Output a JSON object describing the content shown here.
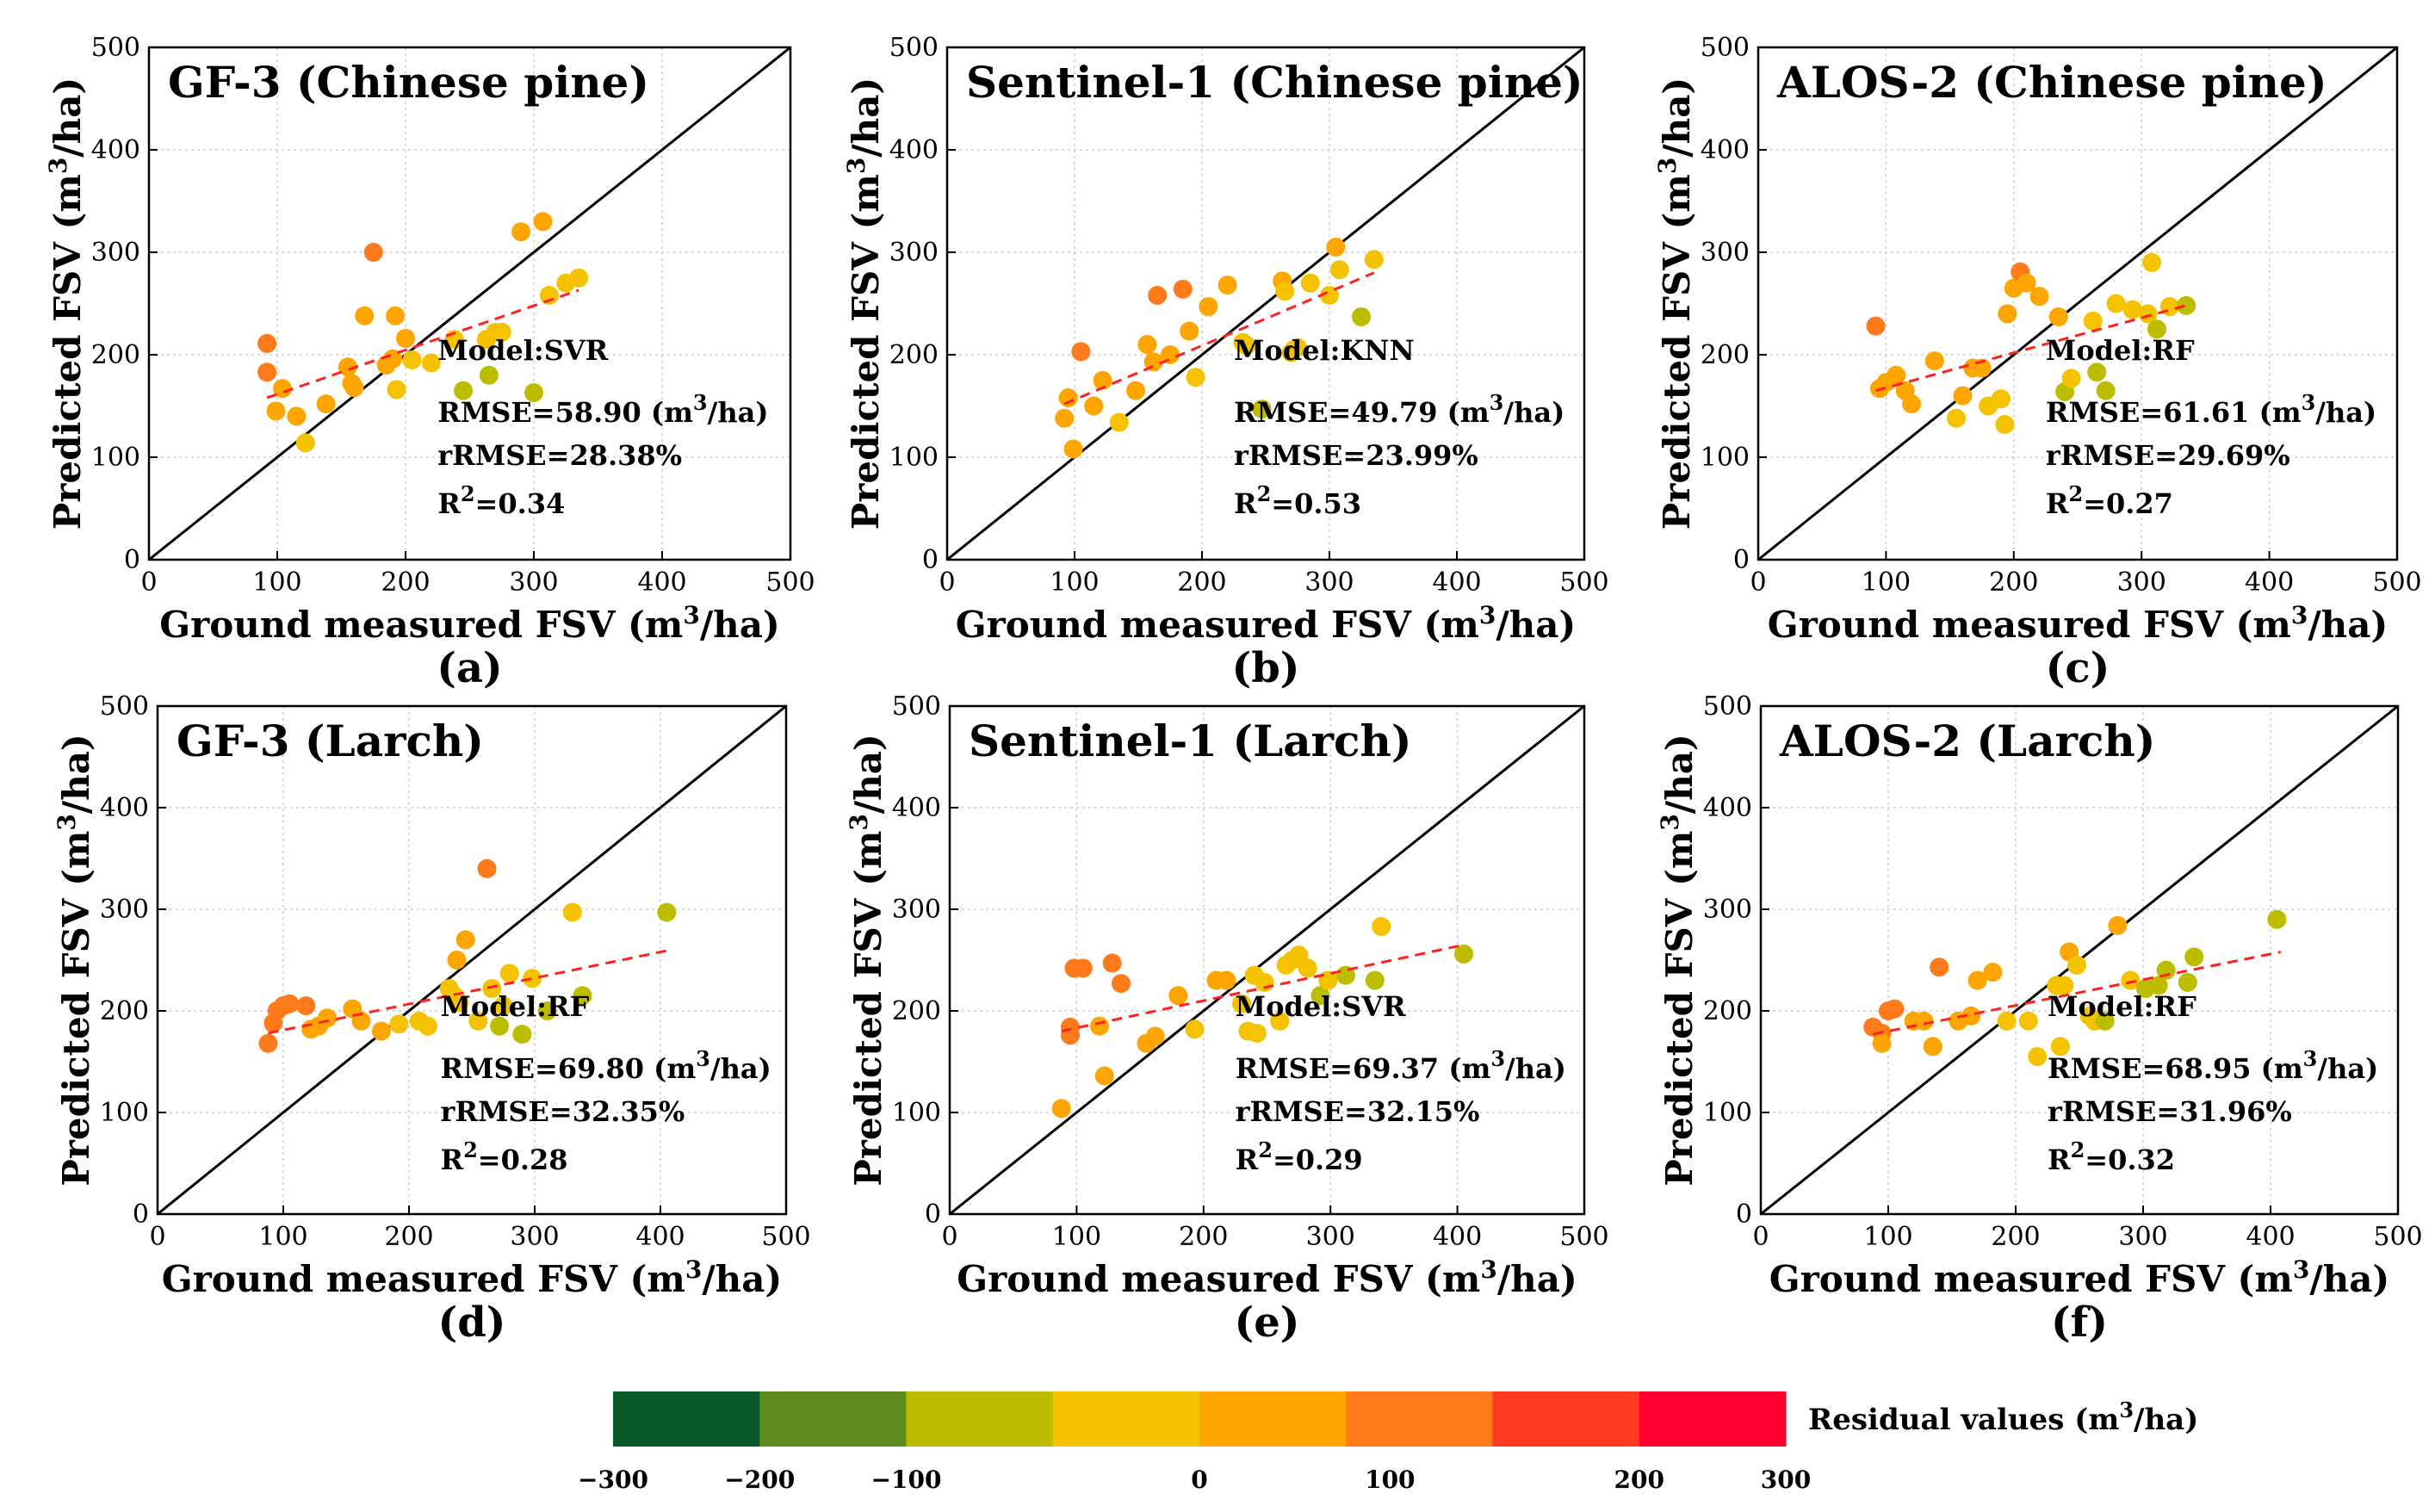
{
  "chart_data": [
    {
      "type": "scatter",
      "panel_label": "(a)",
      "title": "GF-3 (Chinese pine)",
      "xlabel": "Ground measured FSV (m³/ha)",
      "ylabel": "Predicted FSV (m³/ha)",
      "xlim": [
        0,
        500
      ],
      "ylim": [
        0,
        500
      ],
      "ticks": [
        "0",
        "100",
        "200",
        "300",
        "400",
        "500"
      ],
      "model": "Model:SVR",
      "rmse": "RMSE=58.90 (m³/ha)",
      "rrmse": "rRMSE=28.38%",
      "r2": "R²=0.34",
      "trend": [
        [
          92,
          158
        ],
        [
          335,
          263
        ]
      ],
      "points": [
        [
          92,
          211
        ],
        [
          92,
          183
        ],
        [
          99,
          145
        ],
        [
          104,
          167
        ],
        [
          115,
          140
        ],
        [
          122,
          114
        ],
        [
          138,
          152
        ],
        [
          155,
          188
        ],
        [
          158,
          172
        ],
        [
          160,
          168
        ],
        [
          168,
          238
        ],
        [
          175,
          300
        ],
        [
          185,
          190
        ],
        [
          190,
          196
        ],
        [
          192,
          238
        ],
        [
          193,
          166
        ],
        [
          200,
          216
        ],
        [
          205,
          195
        ],
        [
          220,
          192
        ],
        [
          238,
          215
        ],
        [
          245,
          165
        ],
        [
          263,
          215
        ],
        [
          265,
          180
        ],
        [
          270,
          222
        ],
        [
          275,
          222
        ],
        [
          290,
          320
        ],
        [
          300,
          163
        ],
        [
          307,
          330
        ],
        [
          312,
          258
        ],
        [
          325,
          270
        ],
        [
          335,
          275
        ]
      ]
    },
    {
      "type": "scatter",
      "panel_label": "(b)",
      "title": "Sentinel-1 (Chinese pine)",
      "xlabel": "Ground measured FSV (m³/ha)",
      "ylabel": "Predicted FSV (m³/ha)",
      "xlim": [
        0,
        500
      ],
      "ylim": [
        0,
        500
      ],
      "ticks": [
        "0",
        "100",
        "200",
        "300",
        "400",
        "500"
      ],
      "model": "Model:KNN",
      "rmse": "RMSE=49.79 (m³/ha)",
      "rrmse": "rRMSE=23.99%",
      "r2": "R²=0.53",
      "trend": [
        [
          92,
          152
        ],
        [
          335,
          280
        ]
      ],
      "points": [
        [
          92,
          138
        ],
        [
          95,
          158
        ],
        [
          99,
          108
        ],
        [
          105,
          203
        ],
        [
          115,
          150
        ],
        [
          122,
          175
        ],
        [
          135,
          134
        ],
        [
          148,
          165
        ],
        [
          157,
          210
        ],
        [
          162,
          193
        ],
        [
          165,
          258
        ],
        [
          175,
          200
        ],
        [
          185,
          264
        ],
        [
          190,
          223
        ],
        [
          195,
          178
        ],
        [
          205,
          247
        ],
        [
          220,
          268
        ],
        [
          232,
          212
        ],
        [
          235,
          209
        ],
        [
          247,
          147
        ],
        [
          263,
          272
        ],
        [
          265,
          262
        ],
        [
          270,
          202
        ],
        [
          272,
          205
        ],
        [
          275,
          207
        ],
        [
          285,
          270
        ],
        [
          300,
          258
        ],
        [
          305,
          305
        ],
        [
          308,
          283
        ],
        [
          325,
          237
        ],
        [
          335,
          293
        ]
      ]
    },
    {
      "type": "scatter",
      "panel_label": "(c)",
      "title": "ALOS-2 (Chinese pine)",
      "xlabel": "Ground measured FSV (m³/ha)",
      "ylabel": "Predicted FSV (m³/ha)",
      "xlim": [
        0,
        500
      ],
      "ylim": [
        0,
        500
      ],
      "ticks": [
        "0",
        "100",
        "200",
        "300",
        "400",
        "500"
      ],
      "model": "Model:RF",
      "rmse": "RMSE=61.61 (m³/ha)",
      "rrmse": "rRMSE=29.69%",
      "r2": "R²=0.27",
      "trend": [
        [
          92,
          165
        ],
        [
          335,
          248
        ]
      ],
      "points": [
        [
          92,
          228
        ],
        [
          95,
          167
        ],
        [
          100,
          173
        ],
        [
          108,
          180
        ],
        [
          115,
          165
        ],
        [
          120,
          152
        ],
        [
          138,
          194
        ],
        [
          155,
          138
        ],
        [
          160,
          160
        ],
        [
          168,
          187
        ],
        [
          175,
          187
        ],
        [
          180,
          150
        ],
        [
          190,
          157
        ],
        [
          193,
          132
        ],
        [
          195,
          240
        ],
        [
          200,
          265
        ],
        [
          205,
          281
        ],
        [
          210,
          270
        ],
        [
          220,
          257
        ],
        [
          235,
          237
        ],
        [
          240,
          164
        ],
        [
          245,
          177
        ],
        [
          262,
          233
        ],
        [
          265,
          183
        ],
        [
          272,
          165
        ],
        [
          280,
          250
        ],
        [
          293,
          244
        ],
        [
          305,
          240
        ],
        [
          308,
          290
        ],
        [
          312,
          225
        ],
        [
          322,
          247
        ],
        [
          335,
          248
        ]
      ]
    },
    {
      "type": "scatter",
      "panel_label": "(d)",
      "title": "GF-3 (Larch)",
      "xlabel": "Ground measured FSV (m³/ha)",
      "ylabel": "Predicted FSV (m³/ha)",
      "xlim": [
        0,
        500
      ],
      "ylim": [
        0,
        500
      ],
      "ticks": [
        "0",
        "100",
        "200",
        "300",
        "400",
        "500"
      ],
      "model": "Model:RF",
      "rmse": "RMSE=69.80 (m³/ha)",
      "rrmse": "rRMSE=32.35%",
      "r2": "R²=0.28",
      "trend": [
        [
          88,
          178
        ],
        [
          408,
          260
        ]
      ],
      "points": [
        [
          88,
          168
        ],
        [
          92,
          188
        ],
        [
          95,
          200
        ],
        [
          100,
          205
        ],
        [
          105,
          207
        ],
        [
          118,
          205
        ],
        [
          122,
          182
        ],
        [
          128,
          185
        ],
        [
          135,
          193
        ],
        [
          155,
          202
        ],
        [
          162,
          190
        ],
        [
          178,
          180
        ],
        [
          192,
          187
        ],
        [
          208,
          190
        ],
        [
          215,
          185
        ],
        [
          232,
          222
        ],
        [
          236,
          215
        ],
        [
          238,
          250
        ],
        [
          240,
          208
        ],
        [
          245,
          270
        ],
        [
          255,
          190
        ],
        [
          262,
          340
        ],
        [
          266,
          222
        ],
        [
          272,
          185
        ],
        [
          275,
          205
        ],
        [
          280,
          237
        ],
        [
          290,
          177
        ],
        [
          298,
          232
        ],
        [
          310,
          200
        ],
        [
          330,
          297
        ],
        [
          338,
          215
        ],
        [
          405,
          297
        ]
      ]
    },
    {
      "type": "scatter",
      "panel_label": "(e)",
      "title": "Sentinel-1 (Larch)",
      "xlabel": "Ground measured FSV (m³/ha)",
      "ylabel": "Predicted FSV (m³/ha)",
      "xlim": [
        0,
        500
      ],
      "ylim": [
        0,
        500
      ],
      "ticks": [
        "0",
        "100",
        "200",
        "300",
        "400",
        "500"
      ],
      "model": "Model:SVR",
      "rmse": "RMSE=69.37 (m³/ha)",
      "rrmse": "rRMSE=32.15%",
      "r2": "R²=0.29",
      "trend": [
        [
          88,
          180
        ],
        [
          405,
          265
        ]
      ],
      "points": [
        [
          88,
          104
        ],
        [
          95,
          176
        ],
        [
          95,
          184
        ],
        [
          98,
          242
        ],
        [
          105,
          242
        ],
        [
          118,
          185
        ],
        [
          122,
          136
        ],
        [
          128,
          247
        ],
        [
          135,
          227
        ],
        [
          155,
          168
        ],
        [
          162,
          175
        ],
        [
          180,
          215
        ],
        [
          193,
          182
        ],
        [
          210,
          230
        ],
        [
          218,
          230
        ],
        [
          230,
          207
        ],
        [
          235,
          180
        ],
        [
          240,
          235
        ],
        [
          242,
          178
        ],
        [
          248,
          228
        ],
        [
          260,
          190
        ],
        [
          265,
          245
        ],
        [
          270,
          250
        ],
        [
          275,
          255
        ],
        [
          282,
          242
        ],
        [
          292,
          215
        ],
        [
          298,
          230
        ],
        [
          312,
          235
        ],
        [
          335,
          230
        ],
        [
          340,
          283
        ],
        [
          405,
          256
        ]
      ]
    },
    {
      "type": "scatter",
      "panel_label": "(f)",
      "title": "ALOS-2 (Larch)",
      "xlabel": "Ground measured FSV (m³/ha)",
      "ylabel": "Predicted FSV (m³/ha)",
      "xlim": [
        0,
        500
      ],
      "ylim": [
        0,
        500
      ],
      "ticks": [
        "0",
        "100",
        "200",
        "300",
        "400",
        "500"
      ],
      "model": "Model:RF",
      "rmse": "RMSE=68.95 (m³/ha)",
      "rrmse": "rRMSE=31.96%",
      "r2": "R²=0.32",
      "trend": [
        [
          88,
          177
        ],
        [
          408,
          258
        ]
      ],
      "points": [
        [
          88,
          184
        ],
        [
          95,
          178
        ],
        [
          95,
          168
        ],
        [
          100,
          200
        ],
        [
          105,
          202
        ],
        [
          120,
          190
        ],
        [
          128,
          190
        ],
        [
          135,
          165
        ],
        [
          140,
          243
        ],
        [
          155,
          190
        ],
        [
          165,
          195
        ],
        [
          170,
          230
        ],
        [
          182,
          238
        ],
        [
          193,
          190
        ],
        [
          210,
          190
        ],
        [
          217,
          155
        ],
        [
          232,
          225
        ],
        [
          235,
          165
        ],
        [
          238,
          225
        ],
        [
          242,
          258
        ],
        [
          248,
          245
        ],
        [
          258,
          195
        ],
        [
          262,
          190
        ],
        [
          270,
          190
        ],
        [
          280,
          284
        ],
        [
          290,
          230
        ],
        [
          302,
          222
        ],
        [
          312,
          225
        ],
        [
          318,
          240
        ],
        [
          335,
          228
        ],
        [
          340,
          253
        ],
        [
          405,
          290
        ]
      ]
    }
  ],
  "colorbar": {
    "label": "Residual values (m³/ha)",
    "ticks": [
      "−300",
      "−200",
      "−100",
      "0",
      "100",
      "200",
      "300"
    ],
    "colors": [
      "#0b5a28",
      "#5e8c1f",
      "#bdbd00",
      "#f5c200",
      "#ffa500",
      "#ff7a1a",
      "#ff3a20",
      "#ff0030"
    ]
  }
}
